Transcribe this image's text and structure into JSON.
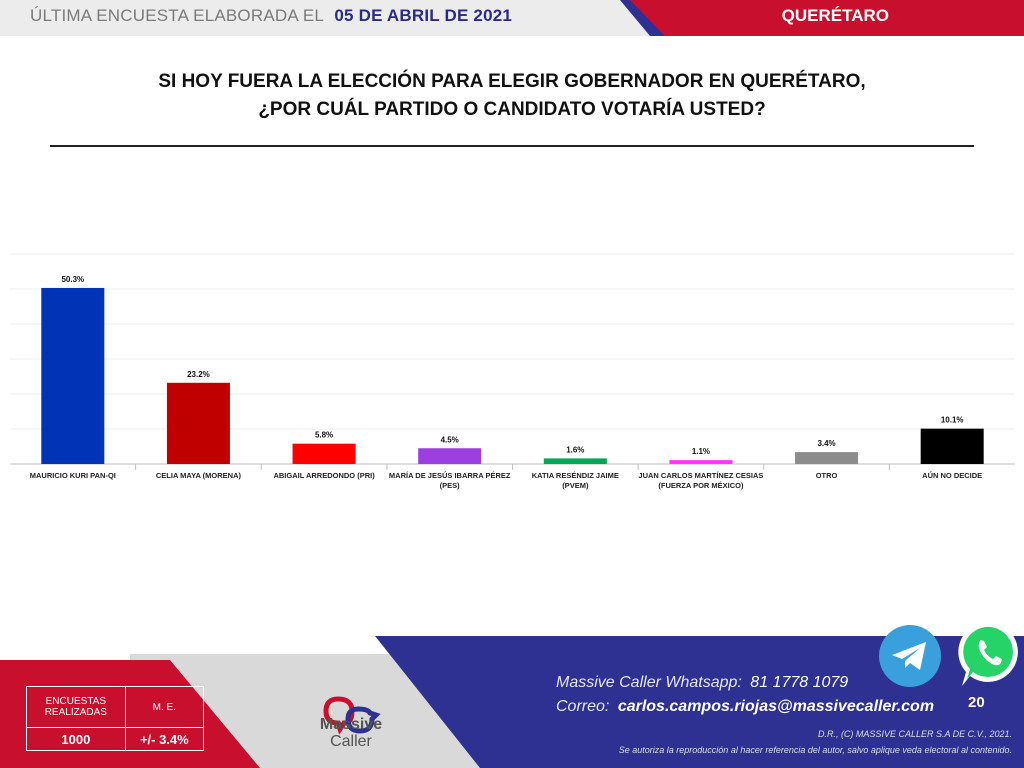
{
  "header": {
    "prefix": "ÚLTIMA ENCUESTA ELABORADA EL",
    "date": "05 DE ABRIL DE 2021",
    "state": "QUERÉTARO"
  },
  "question": {
    "line1": "SI HOY FUERA LA ELECCIÓN PARA ELEGIR GOBERNADOR EN QUERÉTARO,",
    "line2": "¿POR CUÁL PARTIDO O CANDIDATO VOTARÍA USTED?"
  },
  "chart_data": {
    "type": "bar",
    "categories": [
      [
        "MAURICIO KURI PAN-QI"
      ],
      [
        "CELIA MAYA (MORENA)"
      ],
      [
        "ABIGAIL ARREDONDO (PRI)"
      ],
      [
        "MARÍA DE JESÚS IBARRA PÉREZ",
        "(PES)"
      ],
      [
        "KATIA RESÉNDIZ JAIME",
        "(PVEM)"
      ],
      [
        "JUAN CARLOS MARTÍNEZ CESIAS",
        "(FUERZA POR MÉXICO)"
      ],
      [
        "OTRO"
      ],
      [
        "AÚN NO DECIDE"
      ]
    ],
    "values": [
      50.3,
      23.2,
      5.8,
      4.5,
      1.6,
      1.1,
      3.4,
      10.1
    ],
    "value_labels": [
      "50.3%",
      "23.2%",
      "5.8%",
      "4.5%",
      "1.6%",
      "1.1%",
      "3.4%",
      "10.1%"
    ],
    "colors": [
      "#0033b5",
      "#c00000",
      "#ff0000",
      "#9b3fe0",
      "#00a651",
      "#ff33ff",
      "#8c8c8c",
      "#000000"
    ],
    "ylim": [
      0,
      60
    ],
    "grid": true,
    "legend": "none"
  },
  "footer": {
    "surveys_label_1": "ENCUESTAS",
    "surveys_label_2": "REALIZADAS",
    "surveys_value": "1000",
    "me_label": "M. E.",
    "me_value": "+/- 3.4%",
    "logo_line1": "Massive",
    "logo_line2": "Caller",
    "whatsapp_label": "Massive Caller Whatsapp:",
    "whatsapp_number": "81 1778 1079",
    "email_label": "Correo:",
    "email_value": "carlos.campos.riojas@massivecaller.com",
    "copyright": "D.R., (C) MASSIVE CALLER S.A DE C.V., 2021.",
    "disclaimer": "Se autoriza la reproducción al hacer referencia del autor, salvo aplique veda electoral al contenido.",
    "page_number": "20"
  },
  "colors": {
    "navy": "#2e3192",
    "red": "#c8102e",
    "gray": "#d9d9d9"
  },
  "icons": [
    "telegram-icon",
    "whatsapp-icon",
    "massive-caller-logo"
  ]
}
